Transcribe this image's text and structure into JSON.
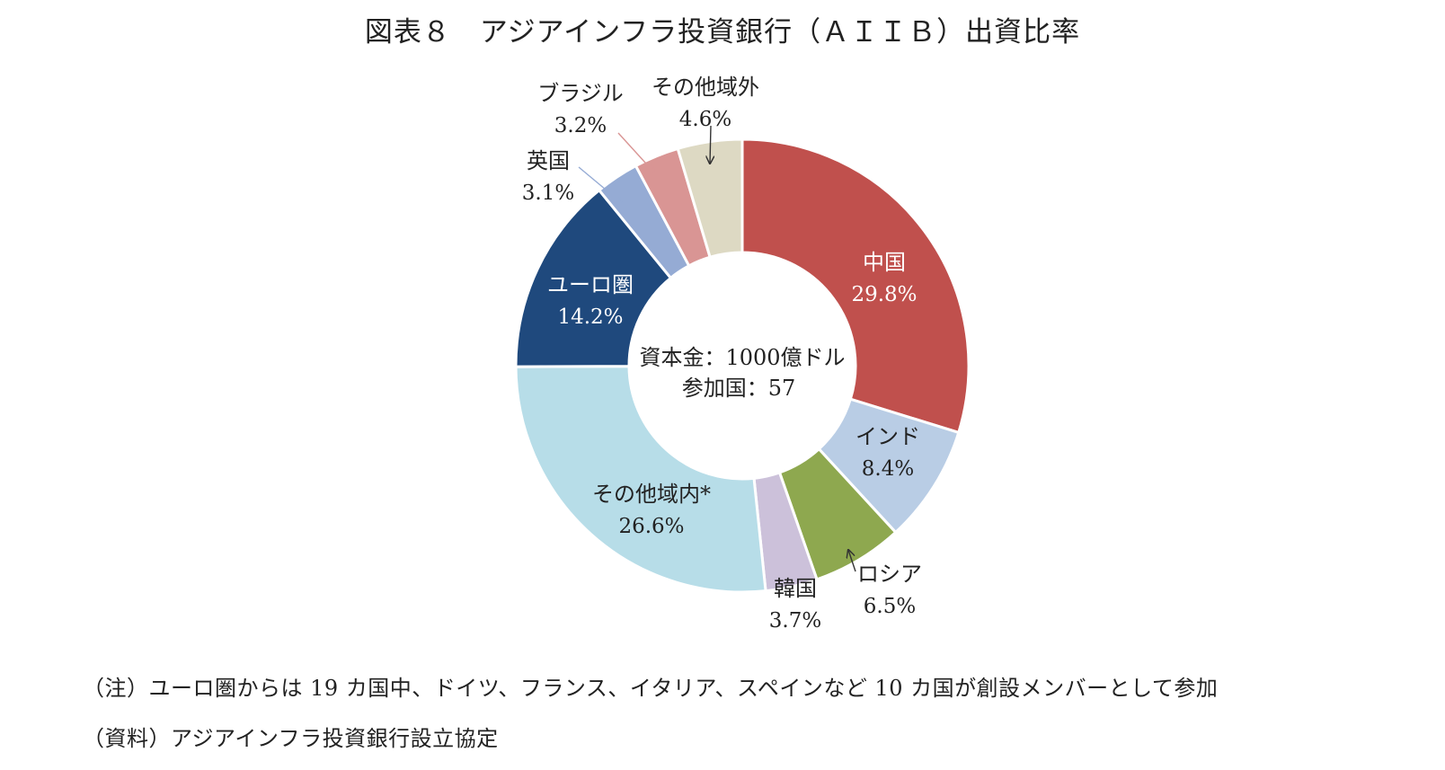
{
  "title": "図表８　アジアインフラ投資銀行（ＡＩＩＢ）出資比率",
  "center_text": {
    "line1": "資本金：1000億ドル",
    "line2": "参加国：57"
  },
  "notes": {
    "note": "（注）ユーロ圏からは 19 カ国中、ドイツ、フランス、イタリア、スペインなど 10 カ国が創設メンバーとして参加",
    "source": "（資料）アジアインフラ投資銀行設立協定"
  },
  "chart_data": {
    "type": "pie",
    "donut": true,
    "start": "12 o'clock",
    "direction": "clockwise",
    "slices": [
      {
        "label": "中国",
        "value": 29.8,
        "display": "29.8%",
        "color": "#c0504d",
        "label_color": "#ffffff"
      },
      {
        "label": "インド",
        "value": 8.4,
        "display": "8.4%",
        "color": "#b9cde5",
        "label_color": "#222222"
      },
      {
        "label": "ロシア",
        "value": 6.5,
        "display": "6.5%",
        "color": "#8ea84f",
        "label_color": "#222222"
      },
      {
        "label": "韓国",
        "value": 3.7,
        "display": "3.7%",
        "color": "#ccc1da",
        "label_color": "#222222"
      },
      {
        "label": "その他域内*",
        "value": 26.6,
        "display": "26.6%",
        "color": "#b7dde8",
        "label_color": "#222222"
      },
      {
        "label": "ユーロ圏",
        "value": 14.2,
        "display": "14.2%",
        "color": "#1f497d",
        "label_color": "#ffffff"
      },
      {
        "label": "英国",
        "value": 3.1,
        "display": "3.1%",
        "color": "#95abd4",
        "label_color": "#222222"
      },
      {
        "label": "ブラジル",
        "value": 3.2,
        "display": "3.2%",
        "color": "#d99594",
        "label_color": "#222222"
      },
      {
        "label": "その他域外",
        "value": 4.6,
        "display": "4.6%",
        "color": "#ddd9c3",
        "label_color": "#222222"
      }
    ]
  }
}
